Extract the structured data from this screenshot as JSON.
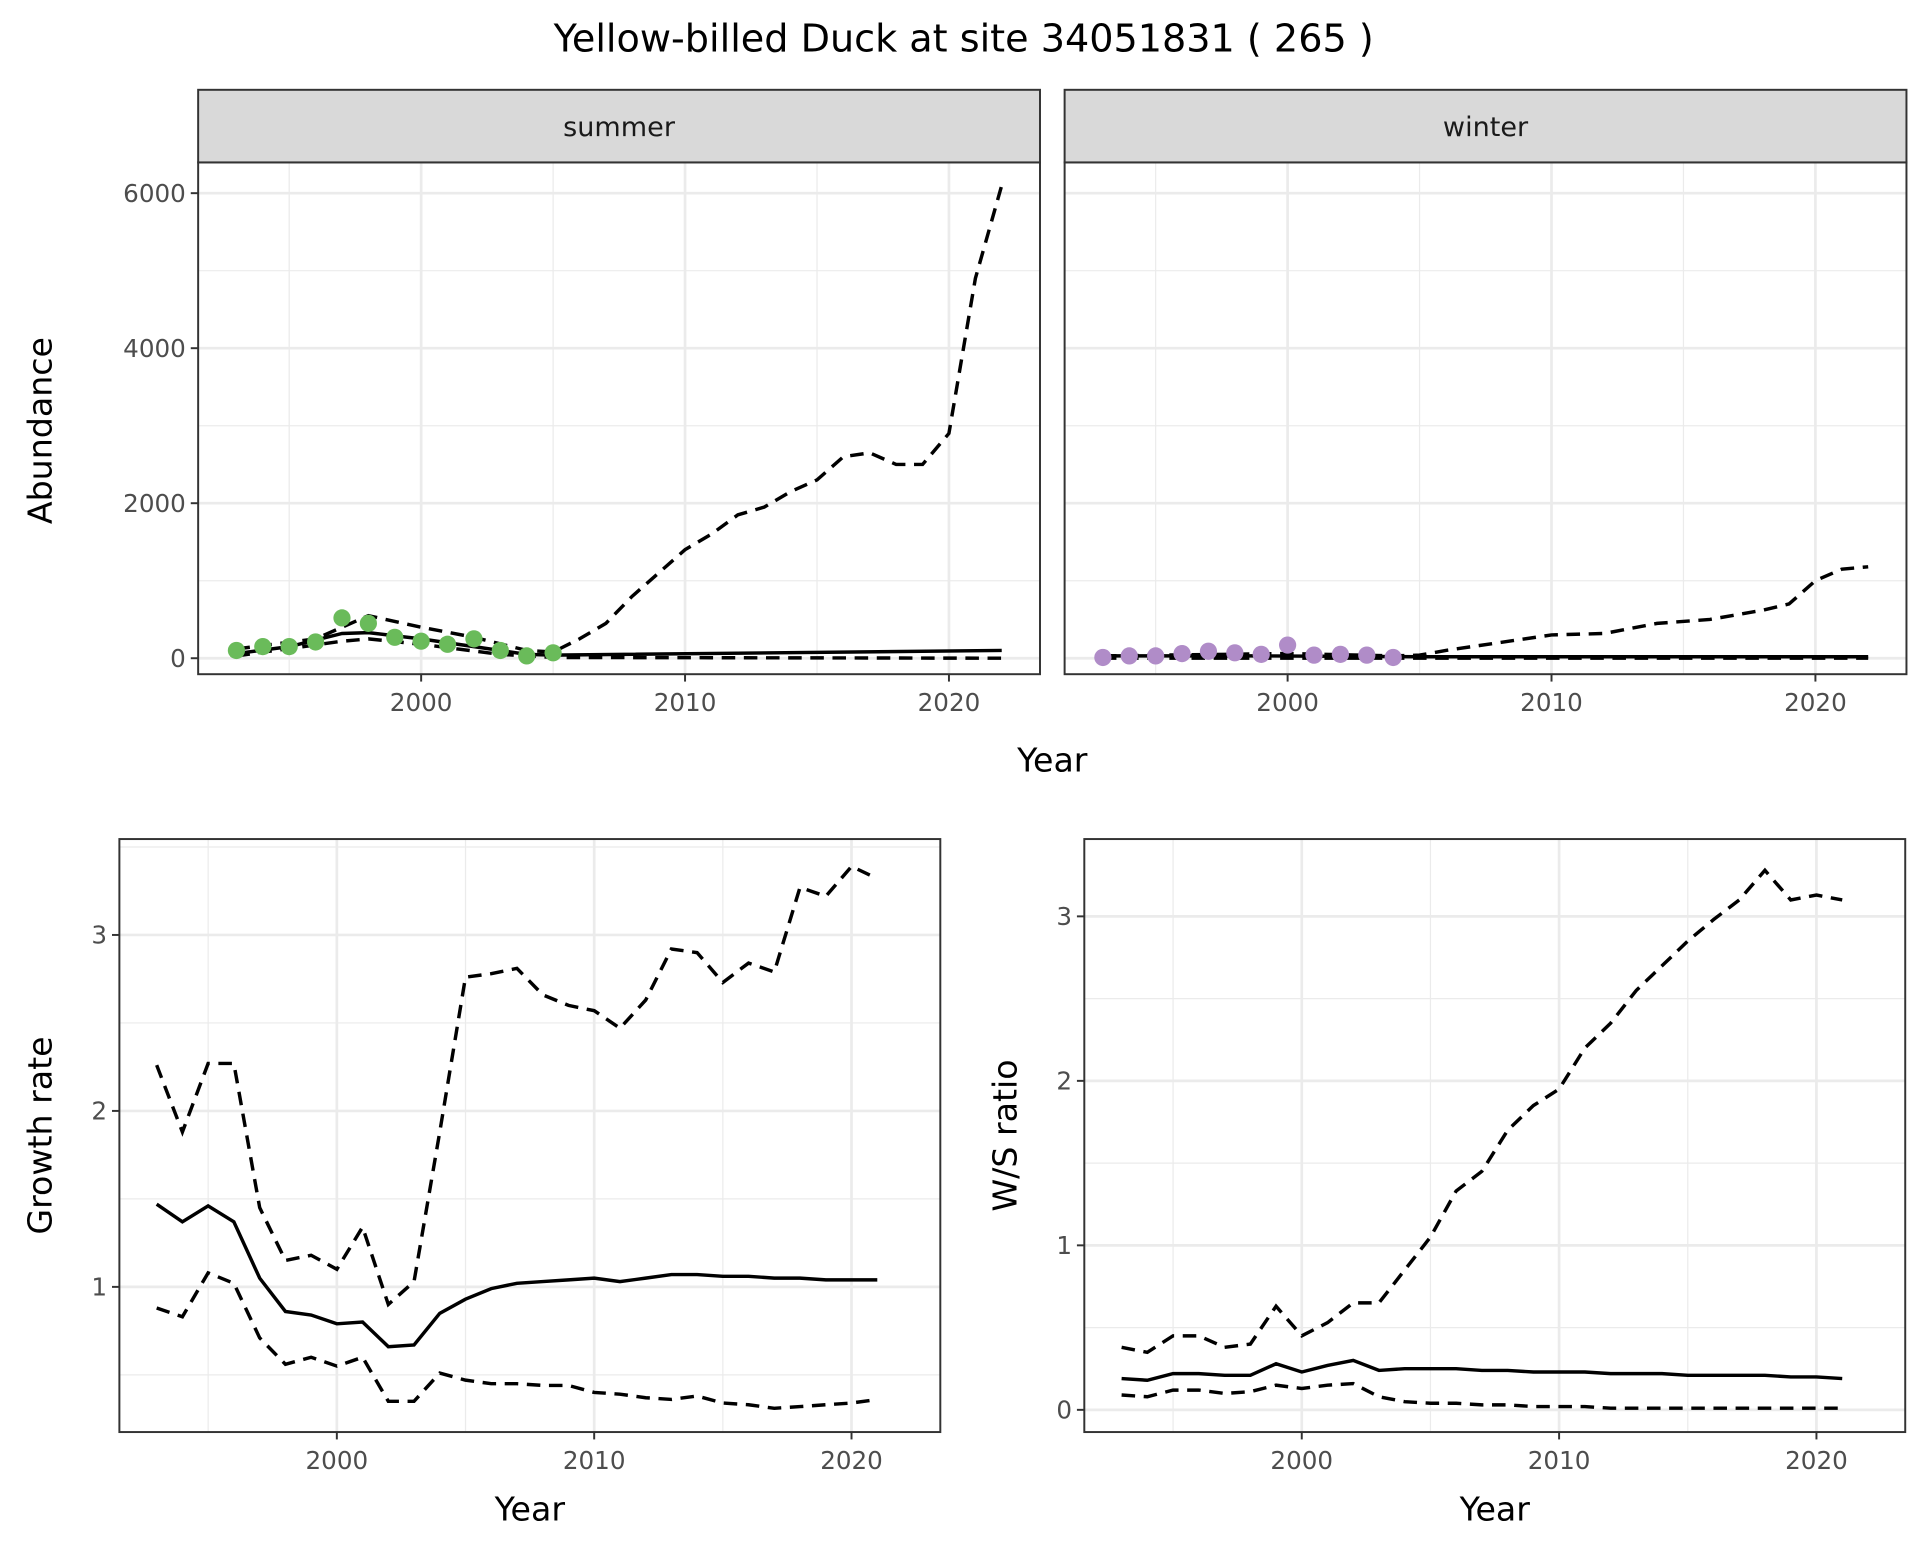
{
  "chart_data": {
    "title": "Yellow-billed Duck at site 34051831 ( 265 )",
    "panels": [
      {
        "id": "summer",
        "type": "line",
        "strip": "summer",
        "xlabel": "Year",
        "ylabel": "Abundance",
        "xlim": [
          1991.55,
          2023.45
        ],
        "ylim": [
          -206,
          6397
        ],
        "xticks": [
          2000,
          2010,
          2020
        ],
        "yticks": [
          0,
          2000,
          4000,
          6000
        ],
        "show_yticks": true,
        "point_color": "#6abb5a",
        "points": {
          "x": [
            1993,
            1994,
            1995,
            1996,
            1997,
            1998,
            1999,
            2000,
            2001,
            2002,
            2003,
            2004,
            2005
          ],
          "y": [
            100,
            150,
            150,
            210,
            520,
            450,
            270,
            220,
            180,
            250,
            100,
            30,
            70
          ]
        },
        "mean": {
          "x": [
            1993,
            1995,
            1997,
            1998,
            2000,
            2002,
            2004,
            2005,
            2022
          ],
          "y": [
            60,
            150,
            320,
            330,
            250,
            150,
            50,
            40,
            100
          ]
        },
        "upper": {
          "x": [
            1993,
            1996,
            1998,
            2000,
            2002,
            2004,
            2005,
            2006,
            2007,
            2008,
            2009,
            2010,
            2011,
            2012,
            2013,
            2014,
            2015,
            2016,
            2017,
            2018,
            2019,
            2020,
            2021,
            2022
          ],
          "y": [
            120,
            250,
            550,
            400,
            270,
            100,
            80,
            250,
            450,
            800,
            1100,
            1400,
            1600,
            1850,
            1950,
            2150,
            2300,
            2600,
            2650,
            2500,
            2500,
            2900,
            4900,
            6100
          ]
        },
        "lower": {
          "x": [
            1993,
            1997,
            1998,
            2000,
            2003,
            2005,
            2022
          ],
          "y": [
            30,
            220,
            250,
            180,
            50,
            10,
            0
          ]
        }
      },
      {
        "id": "winter",
        "type": "line",
        "strip": "winter",
        "xlabel": "",
        "ylabel": "",
        "xlim": [
          1991.55,
          2023.45
        ],
        "ylim": [
          -206,
          6397
        ],
        "xticks": [
          2000,
          2010,
          2020
        ],
        "yticks": [
          0,
          2000,
          4000,
          6000
        ],
        "show_yticks": false,
        "point_color": "#b08cc8",
        "points": {
          "x": [
            1993,
            1994,
            1995,
            1996,
            1997,
            1998,
            1999,
            2000,
            2001,
            2002,
            2003,
            2004
          ],
          "y": [
            10,
            30,
            30,
            60,
            90,
            70,
            50,
            170,
            40,
            50,
            40,
            10
          ]
        },
        "mean": {
          "x": [
            1993,
            1999,
            2005,
            2022
          ],
          "y": [
            30,
            30,
            20,
            20
          ]
        },
        "upper": {
          "x": [
            1993,
            2000,
            2004,
            2005,
            2006,
            2008,
            2010,
            2012,
            2014,
            2016,
            2018,
            2019,
            2020,
            2021,
            2022
          ],
          "y": [
            30,
            60,
            30,
            40,
            100,
            200,
            300,
            320,
            450,
            500,
            620,
            700,
            1000,
            1150,
            1180
          ]
        },
        "lower": {
          "x": [
            1993,
            2022
          ],
          "y": [
            0,
            0
          ]
        }
      },
      {
        "id": "growth",
        "type": "line",
        "xlabel": "Year",
        "ylabel": "Growth rate",
        "xlim": [
          1991.55,
          2023.45
        ],
        "ylim": [
          0.175,
          3.545
        ],
        "xticks": [
          2000,
          2010,
          2020
        ],
        "yticks": [
          1,
          2,
          3
        ],
        "show_yticks": true,
        "mean": {
          "x": [
            1993,
            1994,
            1995,
            1996,
            1997,
            1998,
            1999,
            2000,
            2001,
            2002,
            2003,
            2004,
            2005,
            2006,
            2007,
            2008,
            2009,
            2010,
            2011,
            2012,
            2013,
            2014,
            2015,
            2016,
            2017,
            2018,
            2019,
            2020,
            2021
          ],
          "y": [
            1.47,
            1.37,
            1.46,
            1.37,
            1.05,
            0.86,
            0.84,
            0.79,
            0.8,
            0.66,
            0.67,
            0.85,
            0.93,
            0.99,
            1.02,
            1.03,
            1.04,
            1.05,
            1.03,
            1.05,
            1.07,
            1.07,
            1.06,
            1.06,
            1.05,
            1.05,
            1.04,
            1.04,
            1.04
          ]
        },
        "upper": {
          "x": [
            1993,
            1994,
            1995,
            1996,
            1997,
            1998,
            1999,
            2000,
            2001,
            2002,
            2003,
            2004,
            2005,
            2006,
            2007,
            2008,
            2009,
            2010,
            2011,
            2012,
            2013,
            2014,
            2015,
            2016,
            2017,
            2018,
            2019,
            2020,
            2021
          ],
          "y": [
            2.26,
            1.88,
            2.27,
            2.27,
            1.45,
            1.15,
            1.18,
            1.1,
            1.34,
            0.9,
            1.03,
            1.88,
            2.76,
            2.78,
            2.81,
            2.66,
            2.6,
            2.57,
            2.47,
            2.63,
            2.92,
            2.9,
            2.73,
            2.84,
            2.79,
            3.27,
            3.22,
            3.39,
            3.32
          ]
        },
        "lower": {
          "x": [
            1993,
            1994,
            1995,
            1996,
            1997,
            1998,
            1999,
            2000,
            2001,
            2002,
            2003,
            2004,
            2005,
            2006,
            2007,
            2008,
            2009,
            2010,
            2011,
            2012,
            2013,
            2014,
            2015,
            2016,
            2017,
            2018,
            2019,
            2020,
            2021
          ],
          "y": [
            0.88,
            0.83,
            1.08,
            1.02,
            0.71,
            0.56,
            0.6,
            0.55,
            0.6,
            0.35,
            0.35,
            0.51,
            0.47,
            0.45,
            0.45,
            0.44,
            0.44,
            0.4,
            0.39,
            0.37,
            0.36,
            0.38,
            0.34,
            0.33,
            0.31,
            0.32,
            0.33,
            0.34,
            0.36
          ]
        }
      },
      {
        "id": "wsratio",
        "type": "line",
        "xlabel": "Year",
        "ylabel": "W/S ratio",
        "xlim": [
          1991.55,
          2023.45
        ],
        "ylim": [
          -0.135,
          3.47
        ],
        "xticks": [
          2000,
          2010,
          2020
        ],
        "yticks": [
          0,
          1,
          2,
          3
        ],
        "show_yticks": true,
        "mean": {
          "x": [
            1993,
            1994,
            1995,
            1996,
            1997,
            1998,
            1999,
            2000,
            2001,
            2002,
            2003,
            2004,
            2005,
            2006,
            2007,
            2008,
            2009,
            2010,
            2011,
            2012,
            2013,
            2014,
            2015,
            2016,
            2017,
            2018,
            2019,
            2020,
            2021
          ],
          "y": [
            0.19,
            0.18,
            0.22,
            0.22,
            0.21,
            0.21,
            0.28,
            0.23,
            0.27,
            0.3,
            0.24,
            0.25,
            0.25,
            0.25,
            0.24,
            0.24,
            0.23,
            0.23,
            0.23,
            0.22,
            0.22,
            0.22,
            0.21,
            0.21,
            0.21,
            0.21,
            0.2,
            0.2,
            0.19
          ]
        },
        "upper": {
          "x": [
            1993,
            1994,
            1995,
            1996,
            1997,
            1998,
            1999,
            2000,
            2001,
            2002,
            2003,
            2004,
            2005,
            2006,
            2007,
            2008,
            2009,
            2010,
            2011,
            2012,
            2013,
            2014,
            2015,
            2016,
            2017,
            2018,
            2019,
            2020,
            2021
          ],
          "y": [
            0.38,
            0.35,
            0.45,
            0.45,
            0.38,
            0.4,
            0.63,
            0.45,
            0.53,
            0.65,
            0.65,
            0.85,
            1.05,
            1.33,
            1.45,
            1.7,
            1.85,
            1.95,
            2.2,
            2.35,
            2.55,
            2.7,
            2.85,
            2.98,
            3.1,
            3.28,
            3.1,
            3.13,
            3.1
          ]
        },
        "lower": {
          "x": [
            1993,
            1994,
            1995,
            1996,
            1997,
            1998,
            1999,
            2000,
            2001,
            2002,
            2003,
            2004,
            2005,
            2006,
            2007,
            2008,
            2009,
            2010,
            2011,
            2012,
            2013,
            2014,
            2015,
            2016,
            2017,
            2018,
            2019,
            2020,
            2021
          ],
          "y": [
            0.09,
            0.08,
            0.12,
            0.12,
            0.1,
            0.11,
            0.15,
            0.13,
            0.15,
            0.16,
            0.08,
            0.05,
            0.04,
            0.04,
            0.03,
            0.03,
            0.02,
            0.02,
            0.02,
            0.01,
            0.01,
            0.01,
            0.01,
            0.01,
            0.01,
            0.01,
            0.01,
            0.01,
            0.01
          ]
        }
      }
    ]
  }
}
